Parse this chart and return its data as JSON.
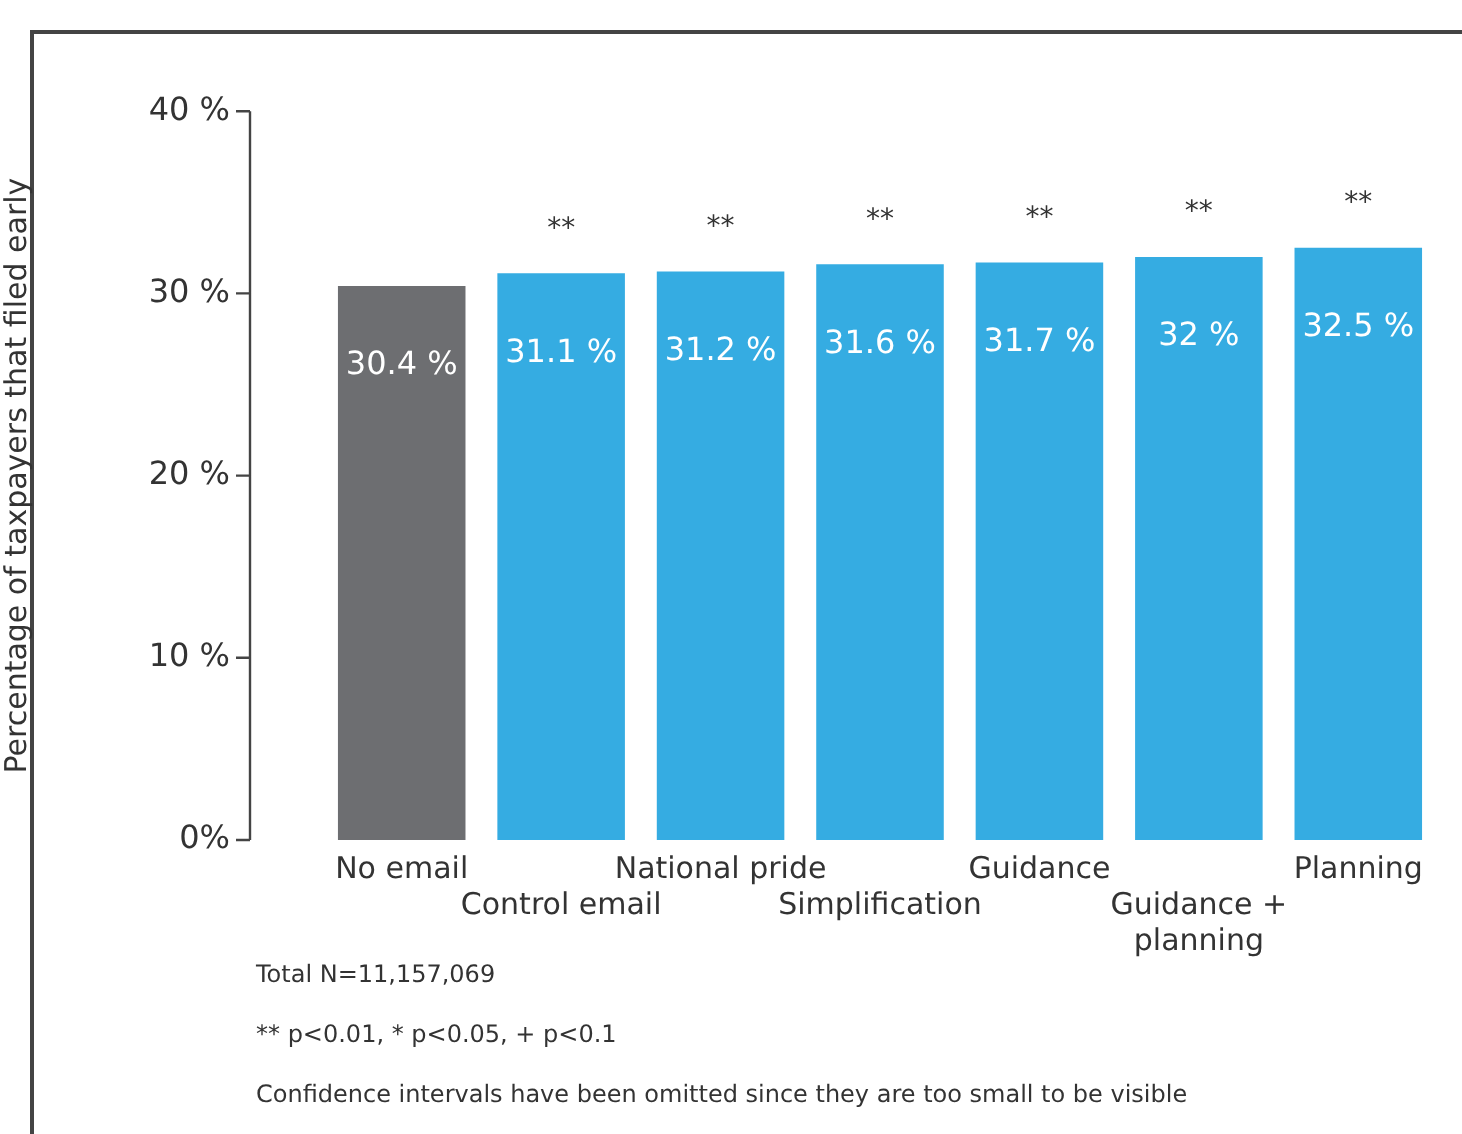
{
  "chart_data": {
    "type": "bar",
    "ylabel": "Percentage of taxpayers that filed early",
    "categories": [
      "No email",
      "Control email",
      "National pride",
      "Simplification",
      "Guidance",
      "Guidance + planning",
      "Planning"
    ],
    "values": [
      30.4,
      31.1,
      31.2,
      31.6,
      31.7,
      32,
      32.5
    ],
    "colors": [
      "#6d6e71",
      "#35ace2",
      "#35ace2",
      "#35ace2",
      "#35ace2",
      "#35ace2",
      "#35ace2"
    ],
    "value_labels": [
      "30.4 %",
      "31.1 %",
      "31.2 %",
      "31.6 %",
      "31.7 %",
      "32 %",
      "32.5 %"
    ],
    "ylim": [
      0,
      40
    ],
    "yticks": [
      {
        "value": 0,
        "label": "0%"
      },
      {
        "value": 10,
        "label": "10 %"
      },
      {
        "value": 20,
        "label": "20 %"
      },
      {
        "value": 30,
        "label": "30 %"
      },
      {
        "value": 40,
        "label": "40 %"
      }
    ],
    "grid": false,
    "legend": false,
    "annotations": [
      {
        "text": "**",
        "x": "Control email",
        "y": 31.1
      },
      {
        "text": "**",
        "x": "National pride",
        "y": 31.2
      },
      {
        "text": "**",
        "x": "Simplification",
        "y": 31.6
      },
      {
        "text": "**",
        "x": "Guidance",
        "y": 31.7
      },
      {
        "text": "**",
        "x": "Guidance + planning",
        "y": 32
      },
      {
        "text": "**",
        "x": "Planning",
        "y": 32.5
      },
      "Total N=11,157,069",
      "** p<0.01, * p<0.05, + p<0.1",
      "Confidence intervals have been omitted since they are too small to be visible"
    ]
  }
}
